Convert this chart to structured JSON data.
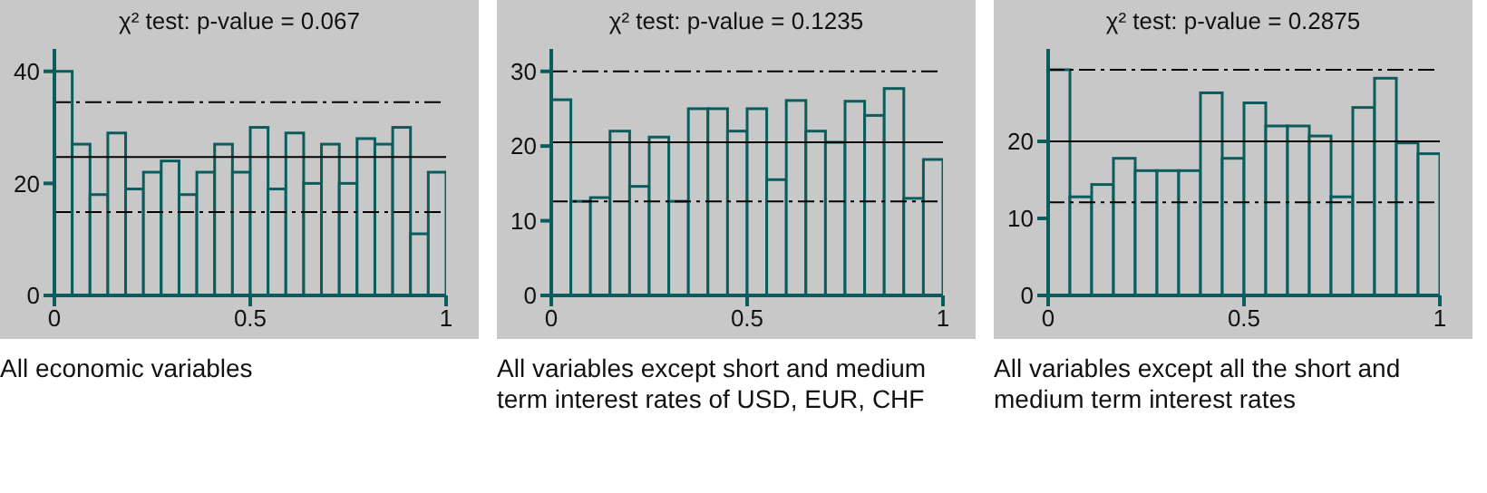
{
  "chart_data": [
    {
      "type": "histogram",
      "title": "χ² test: p-value = 0.067",
      "bins": [
        0,
        0.0455,
        0.0909,
        0.1364,
        0.1818,
        0.2273,
        0.2727,
        0.3182,
        0.3636,
        0.4091,
        0.4545,
        0.5,
        0.5455,
        0.5909,
        0.6364,
        0.6818,
        0.7273,
        0.7727,
        0.8182,
        0.8636,
        0.9091,
        0.9545,
        1
      ],
      "values": [
        40,
        27,
        18,
        29,
        19,
        22,
        24,
        18,
        22,
        27,
        22,
        30,
        19,
        29,
        20,
        27,
        20,
        28,
        27,
        30,
        11,
        22
      ],
      "color": "#c8c8c8",
      "xlim": [
        0,
        1
      ],
      "xticks": [
        0,
        0.5,
        1
      ],
      "ylim": [
        0,
        44
      ],
      "yticks": [
        0,
        20,
        40
      ],
      "grid": false,
      "ref_lines": [
        {
          "axis": "y",
          "value": 34.5,
          "color": "#000000",
          "line_style": "dashed"
        },
        {
          "axis": "y",
          "value": 24.7,
          "color": "#000000",
          "line_style": "solid"
        },
        {
          "axis": "y",
          "value": 14.9,
          "color": "#000000",
          "line_style": "dashed"
        }
      ],
      "annotations": [
        "All economic variables"
      ]
    },
    {
      "type": "histogram",
      "title": "χ² test: p-value = 0.1235",
      "bins": [
        0,
        0.05,
        0.1,
        0.15,
        0.2,
        0.25,
        0.3,
        0.35,
        0.4,
        0.45,
        0.5,
        0.55,
        0.6,
        0.65,
        0.7,
        0.75,
        0.8,
        0.85,
        0.9,
        0.95,
        1
      ],
      "values": [
        26.2,
        12.6,
        13.1,
        22,
        14.6,
        21.2,
        12.6,
        25,
        25,
        22,
        25,
        15.5,
        26.1,
        22,
        20.5,
        26,
        24.1,
        27.7,
        13,
        18.2
      ],
      "color": "#c8c8c8",
      "xlim": [
        0,
        1
      ],
      "xticks": [
        0,
        0.5,
        1
      ],
      "ylim": [
        0,
        33
      ],
      "yticks": [
        0,
        10,
        20,
        30
      ],
      "grid": false,
      "ref_lines": [
        {
          "axis": "y",
          "value": 30,
          "color": "#000000",
          "line_style": "dashed"
        },
        {
          "axis": "y",
          "value": 20.5,
          "color": "#000000",
          "line_style": "solid"
        },
        {
          "axis": "y",
          "value": 12.6,
          "color": "#000000",
          "line_style": "dashed"
        }
      ],
      "annotations": [
        "All variables except short and medium term interest rates of USD, EUR, CHF"
      ]
    },
    {
      "type": "histogram",
      "title": "χ² test: p-value = 0.2875",
      "bins": [
        0,
        0.0556,
        0.1111,
        0.1667,
        0.2222,
        0.2778,
        0.3333,
        0.3889,
        0.4444,
        0.5,
        0.5556,
        0.6111,
        0.6667,
        0.7222,
        0.7778,
        0.8333,
        0.8889,
        0.9444,
        1
      ],
      "values": [
        29.3,
        12.8,
        14.4,
        17.8,
        16.2,
        16.2,
        16.2,
        26.3,
        17.8,
        25,
        22,
        22,
        20.7,
        12.8,
        24.4,
        28.2,
        19.8,
        18.4
      ],
      "color": "#c8c8c8",
      "xlim": [
        0,
        1
      ],
      "xticks": [
        0,
        0.5,
        1
      ],
      "ylim": [
        0,
        32
      ],
      "yticks": [
        0,
        10,
        20
      ],
      "grid": false,
      "ref_lines": [
        {
          "axis": "y",
          "value": 29.3,
          "color": "#000000",
          "line_style": "dashed"
        },
        {
          "axis": "y",
          "value": 20,
          "color": "#000000",
          "line_style": "solid"
        },
        {
          "axis": "y",
          "value": 12.1,
          "color": "#000000",
          "line_style": "dashed"
        }
      ],
      "annotations": [
        "All variables except all the short and medium term interest rates"
      ]
    }
  ]
}
